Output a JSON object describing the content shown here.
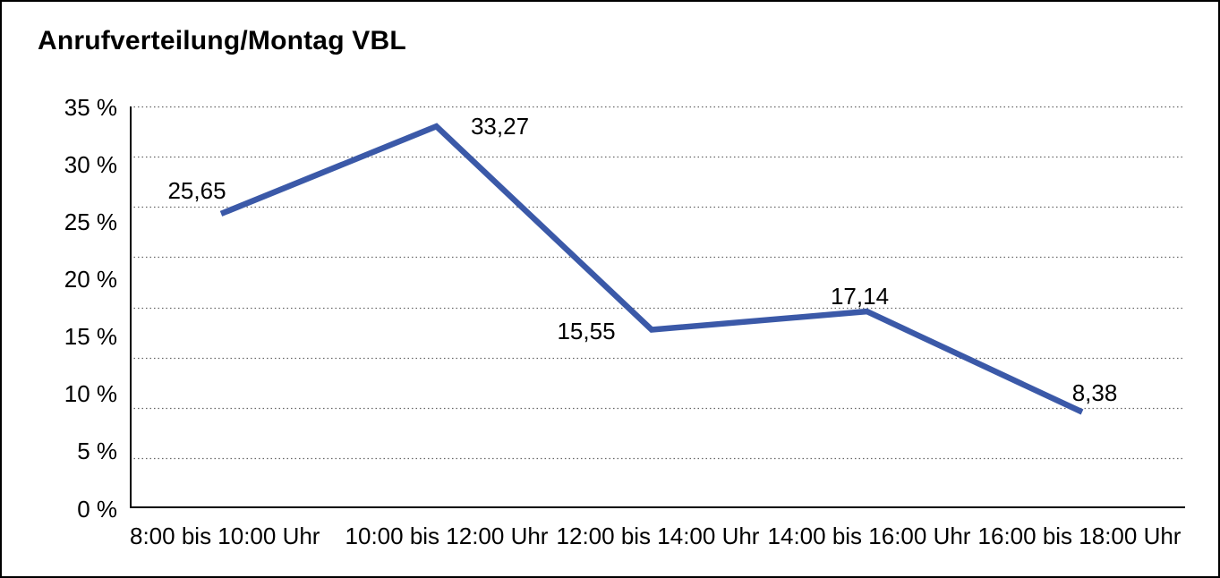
{
  "frame": {
    "background": "#ffffff",
    "border_color": "#000000"
  },
  "chart_data": {
    "type": "line",
    "title": "Anrufverteilung/Montag VBL",
    "categories": [
      "8:00 bis 10:00 Uhr",
      "10:00 bis 12:00 Uhr",
      "12:00 bis 14:00 Uhr",
      "14:00 bis 16:00 Uhr",
      "16:00 bis 18:00 Uhr"
    ],
    "values": [
      25.65,
      33.27,
      15.55,
      17.14,
      8.38
    ],
    "value_labels": [
      "25,65",
      "33,27",
      "15,55",
      "17,14",
      "8,38"
    ],
    "y_tick_labels": [
      "35 %",
      "30 %",
      "25 %",
      "20 %",
      "15 %",
      "10 %",
      "5 %",
      "0 %"
    ],
    "ylim": [
      0,
      35
    ],
    "xlabel": "",
    "ylabel": "",
    "grid": "horizontal-dotted",
    "legend_position": "none",
    "line_color": "#3B59A8",
    "axis_color": "#000000",
    "gridline_color": "#666666",
    "text_color": "#000000"
  }
}
